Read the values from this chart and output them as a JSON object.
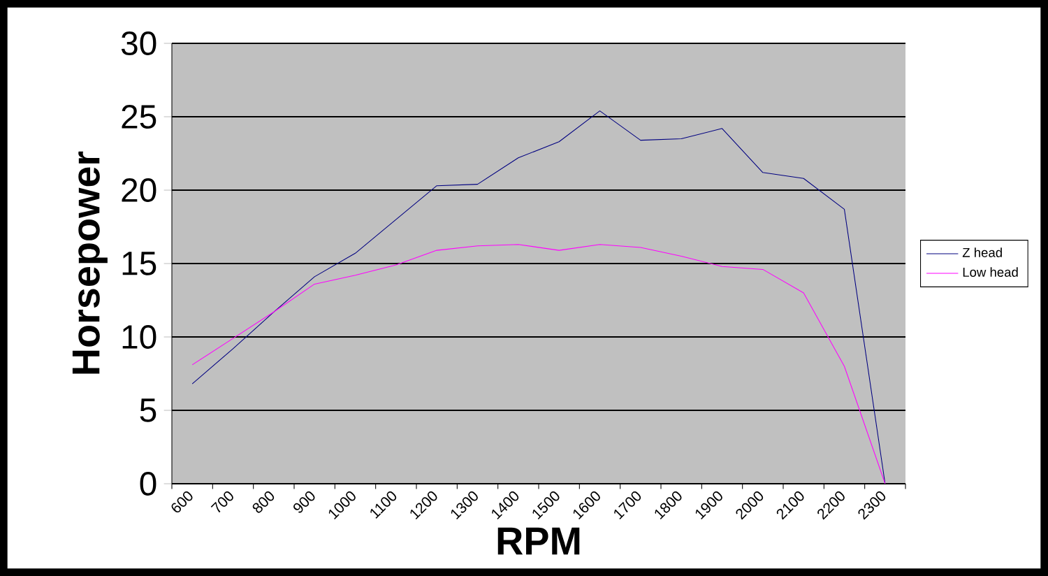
{
  "chart_data": {
    "type": "line",
    "xlabel": "RPM",
    "ylabel": "Horsepower",
    "categories": [
      "600",
      "700",
      "800",
      "900",
      "1000",
      "1100",
      "1200",
      "1300",
      "1400",
      "1500",
      "1600",
      "1700",
      "1800",
      "1900",
      "2000",
      "2100",
      "2200",
      "2300"
    ],
    "series": [
      {
        "name": "Z head",
        "color": "#000080",
        "values": [
          6.8,
          9.2,
          11.7,
          14.1,
          15.7,
          18.0,
          20.3,
          20.4,
          22.2,
          23.3,
          25.4,
          23.4,
          23.5,
          24.2,
          21.2,
          20.8,
          18.7,
          0
        ]
      },
      {
        "name": "Low head",
        "color": "#ff00ff",
        "values": [
          8.1,
          9.9,
          11.7,
          13.6,
          14.2,
          14.9,
          15.9,
          16.2,
          16.3,
          15.9,
          16.3,
          16.1,
          15.5,
          14.8,
          14.6,
          13.0,
          8.0,
          0
        ]
      }
    ],
    "ylim": [
      0,
      30
    ],
    "yticks": [
      0,
      5,
      10,
      15,
      20,
      25,
      30
    ],
    "grid": "y",
    "legend": "right",
    "marker": "none",
    "line_style": "solid"
  }
}
